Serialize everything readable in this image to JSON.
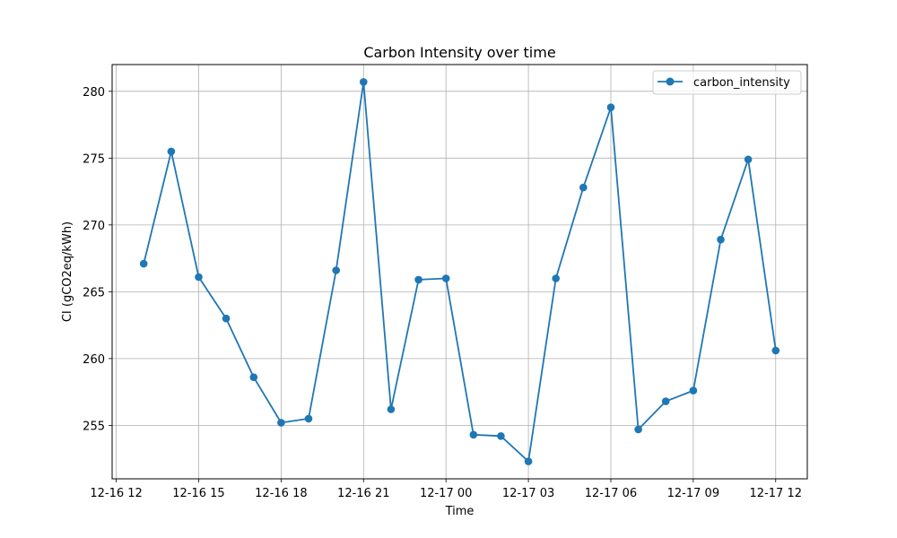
{
  "chart_data": {
    "type": "line",
    "title": "Carbon Intensity over time",
    "xlabel": "Time",
    "ylabel": "CI (gCO2eq/kWh)",
    "grid": true,
    "legend_position": "top-right",
    "x_ticks": [
      "12-16 12",
      "12-16 15",
      "12-16 18",
      "12-16 21",
      "12-17 00",
      "12-17 03",
      "12-17 06",
      "12-17 09",
      "12-17 12"
    ],
    "y_ticks": [
      255,
      260,
      265,
      270,
      275,
      280
    ],
    "ylim": [
      251,
      282
    ],
    "series": [
      {
        "name": "carbon_intensity",
        "color": "#1f77b4",
        "marker": "circle",
        "x": [
          "2023-12-16 13:00",
          "2023-12-16 14:00",
          "2023-12-16 15:00",
          "2023-12-16 16:00",
          "2023-12-16 17:00",
          "2023-12-16 18:00",
          "2023-12-16 19:00",
          "2023-12-16 20:00",
          "2023-12-16 21:00",
          "2023-12-16 22:00",
          "2023-12-16 23:00",
          "2023-12-17 00:00",
          "2023-12-17 01:00",
          "2023-12-17 02:00",
          "2023-12-17 03:00",
          "2023-12-17 04:00",
          "2023-12-17 05:00",
          "2023-12-17 06:00",
          "2023-12-17 07:00",
          "2023-12-17 08:00",
          "2023-12-17 09:00",
          "2023-12-17 10:00",
          "2023-12-17 11:00",
          "2023-12-17 12:00"
        ],
        "values": [
          267.1,
          275.5,
          266.1,
          263.0,
          258.6,
          255.2,
          255.5,
          266.6,
          280.7,
          256.2,
          265.9,
          266.0,
          254.3,
          254.2,
          252.3,
          266.0,
          272.8,
          278.8,
          254.7,
          256.8,
          257.6,
          268.9,
          274.9,
          260.6
        ]
      }
    ]
  }
}
